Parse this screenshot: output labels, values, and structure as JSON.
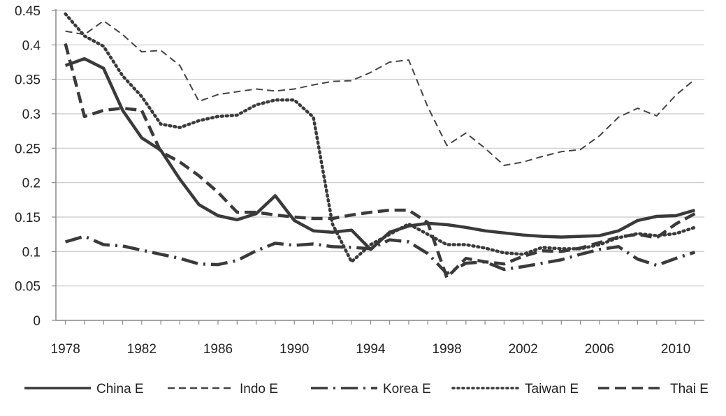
{
  "chart_data": {
    "type": "line",
    "title": "",
    "xlabel": "",
    "ylabel": "",
    "x": [
      1978,
      1979,
      1980,
      1981,
      1982,
      1983,
      1984,
      1985,
      1986,
      1987,
      1988,
      1989,
      1990,
      1991,
      1992,
      1993,
      1994,
      1995,
      1996,
      1997,
      1998,
      1999,
      2000,
      2001,
      2002,
      2003,
      2004,
      2005,
      2006,
      2007,
      2008,
      2009,
      2010,
      2011
    ],
    "xlim": [
      1977.5,
      2011.5
    ],
    "ylim": [
      0,
      0.45
    ],
    "grid": true,
    "legend_position": "bottom",
    "x_tick_labels": [
      "1978",
      "1982",
      "1986",
      "1990",
      "1994",
      "1998",
      "2002",
      "2006",
      "2010"
    ],
    "y_tick_labels": [
      "0",
      "0.05",
      "0.1",
      "0.15",
      "0.2",
      "0.25",
      "0.3",
      "0.35",
      "0.4",
      "0.45"
    ],
    "series": [
      {
        "name": "China E",
        "style": "solid-bold",
        "values": [
          0.37,
          0.38,
          0.366,
          0.305,
          0.265,
          0.247,
          0.205,
          0.168,
          0.152,
          0.146,
          0.155,
          0.181,
          0.145,
          0.13,
          0.128,
          0.131,
          0.103,
          0.128,
          0.137,
          0.141,
          0.139,
          0.135,
          0.13,
          0.127,
          0.124,
          0.122,
          0.121,
          0.122,
          0.123,
          0.13,
          0.145,
          0.151,
          0.152,
          0.16
        ]
      },
      {
        "name": "Indo E",
        "style": "dashed-thin",
        "values": [
          0.42,
          0.415,
          0.435,
          0.415,
          0.39,
          0.392,
          0.37,
          0.318,
          0.328,
          0.332,
          0.336,
          0.333,
          0.336,
          0.342,
          0.347,
          0.348,
          0.36,
          0.375,
          0.378,
          0.31,
          0.254,
          0.272,
          0.25,
          0.225,
          0.23,
          0.238,
          0.245,
          0.248,
          0.268,
          0.295,
          0.308,
          0.297,
          0.327,
          0.35
        ]
      },
      {
        "name": "Korea E",
        "style": "dashdot",
        "values": [
          0.114,
          0.122,
          0.11,
          0.108,
          0.102,
          0.096,
          0.09,
          0.082,
          0.081,
          0.087,
          0.101,
          0.112,
          0.109,
          0.111,
          0.107,
          0.106,
          0.104,
          0.117,
          0.114,
          0.097,
          0.068,
          0.083,
          0.085,
          0.074,
          0.078,
          0.083,
          0.088,
          0.096,
          0.103,
          0.107,
          0.089,
          0.08,
          0.09,
          0.099
        ]
      },
      {
        "name": "Taiwan E",
        "style": "dotted",
        "values": [
          0.445,
          0.413,
          0.398,
          0.355,
          0.325,
          0.285,
          0.28,
          0.29,
          0.296,
          0.298,
          0.313,
          0.32,
          0.32,
          0.295,
          0.14,
          0.085,
          0.11,
          0.125,
          0.14,
          0.125,
          0.11,
          0.11,
          0.105,
          0.098,
          0.096,
          0.106,
          0.104,
          0.104,
          0.11,
          0.12,
          0.126,
          0.123,
          0.126,
          0.135
        ]
      },
      {
        "name": "Thai E",
        "style": "dashed-bold",
        "values": [
          0.402,
          0.296,
          0.305,
          0.308,
          0.305,
          0.245,
          0.23,
          0.21,
          0.186,
          0.157,
          0.157,
          0.153,
          0.15,
          0.148,
          0.148,
          0.153,
          0.157,
          0.16,
          0.16,
          0.142,
          0.062,
          0.09,
          0.085,
          0.082,
          0.093,
          0.101,
          0.1,
          0.105,
          0.113,
          0.121,
          0.125,
          0.12,
          0.14,
          0.155
        ]
      }
    ]
  }
}
